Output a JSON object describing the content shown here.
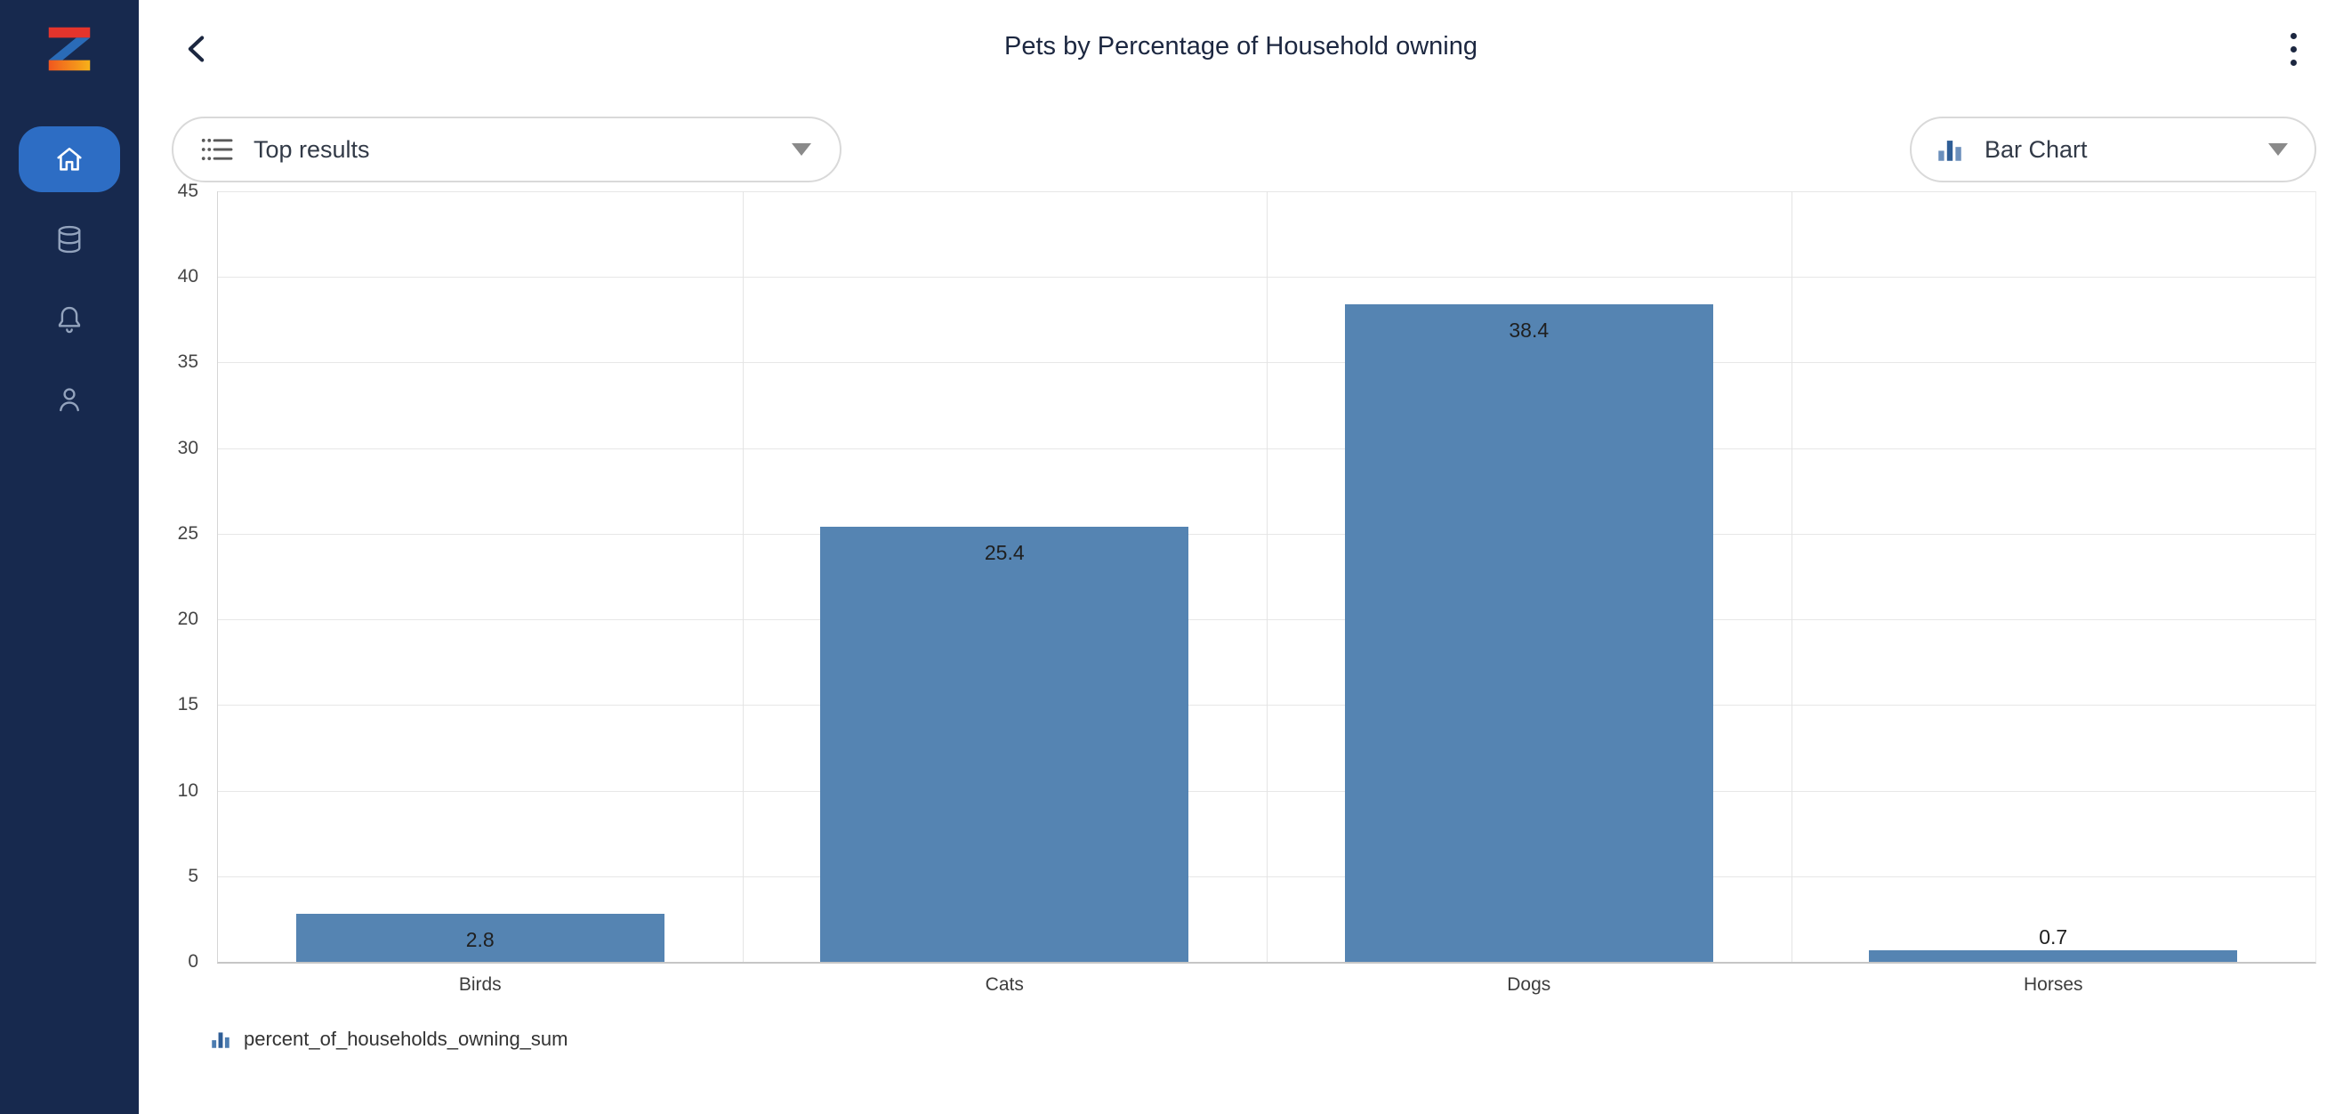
{
  "app": {
    "name_hint": "analytics-viewer"
  },
  "sidebar": {
    "items": [
      {
        "id": "home",
        "icon": "home-icon",
        "active": true
      },
      {
        "id": "data",
        "icon": "database-icon",
        "active": false
      },
      {
        "id": "notifications",
        "icon": "bell-icon",
        "active": false
      },
      {
        "id": "profile",
        "icon": "user-icon",
        "active": false
      }
    ]
  },
  "header": {
    "title": "Pets by Percentage of Household owning",
    "icons": [
      "back-icon",
      "kebab-menu-icon"
    ]
  },
  "toolbar": {
    "top_results_label": "Top results",
    "top_results_icon": "top-results-filter-icon",
    "chart_type_label": "Bar Chart",
    "chart_type_icon": "bar-chart-icon",
    "chevron_icon": "chevron-down-icon"
  },
  "legend": {
    "icon": "bar-chart-icon",
    "series_label": "percent_of_households_owning_sum"
  },
  "chart_data": {
    "type": "bar",
    "title": "Pets by Percentage of Household owning",
    "categories": [
      "Birds",
      "Cats",
      "Dogs",
      "Horses"
    ],
    "values": [
      2.8,
      25.4,
      38.4,
      0.7
    ],
    "series_name": "percent_of_households_owning_sum",
    "xlabel": "",
    "ylabel": "",
    "ylim": [
      0,
      45
    ],
    "ytick_step": 5,
    "yticks": [
      0,
      5,
      10,
      15,
      20,
      25,
      30,
      35,
      40,
      45
    ],
    "grid": true,
    "legend_position": "bottom",
    "bar_color": "#5584b2",
    "data_labels": true
  },
  "colors": {
    "sidebar_bg": "#17294e",
    "active_nav_bg": "#2d6dc4",
    "bar": "#5584b2",
    "title_text": "#1c2740",
    "logo_red": "#e4342c",
    "logo_blue": "#2a6bb7",
    "logo_orange": "#f0571f",
    "logo_yellow": "#f7b119"
  }
}
